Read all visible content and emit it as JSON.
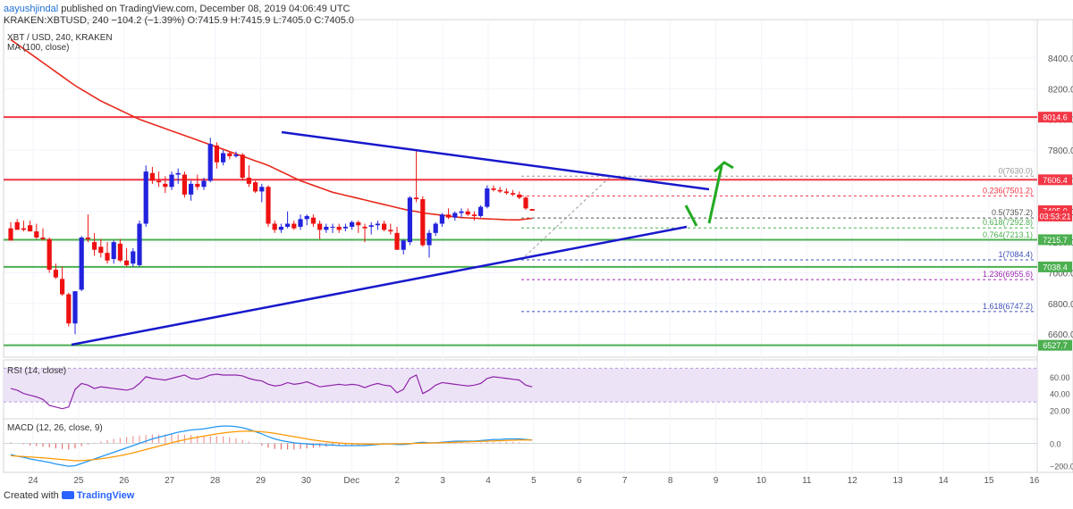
{
  "header": {
    "author": "aayushjindal",
    "published_text": "published on TradingView.com, December 08, 2019 04:06:49 UTC",
    "symbol_line": "KRAKEN:XBTUSD, 240",
    "change": "−104.2 (−1.39%)",
    "ohlc": "O:7415.9 H:7415.9 L:7405.0 C:7405.0"
  },
  "legend": {
    "title": "XBT / USD, 240, KRAKEN",
    "ma": "MA (100, close)",
    "rsi": "RSI (14, close)",
    "macd": "MACD (12, 26, close, 9)"
  },
  "footer": {
    "created_with": "Created with",
    "brand": "TradingView"
  },
  "colors": {
    "up": "#2222dd",
    "down": "#ee1111",
    "ma": "#e8291c",
    "trend": "#1818cc",
    "support": "#4caf50",
    "resistance": "#f23645",
    "arrow": "#22aa22",
    "rsi_line": "#8e24aa",
    "rsi_band": "#ede3f7",
    "macd_line": "#2196f3",
    "signal_line": "#ff9800",
    "fib_grey": "#999999",
    "fib_green": "#4caf50",
    "fib_purple": "#9c27b0",
    "fib_blue": "#3f51b5",
    "fib_red": "#f23645"
  },
  "chart_data": {
    "type": "candlestick",
    "y_ticks": [
      6600,
      6800,
      7000,
      7200,
      7400,
      7600,
      7800,
      8000,
      8200,
      8400
    ],
    "ylim": [
      6450,
      8650
    ],
    "x_labels": [
      "24",
      "25",
      "26",
      "27",
      "28",
      "29",
      "30",
      "Dec",
      "2",
      "3",
      "4",
      "5",
      "6",
      "7",
      "8",
      "9",
      "10",
      "11",
      "12",
      "13",
      "14",
      "15",
      "16"
    ],
    "price_tags": [
      {
        "label": "8014.6",
        "value": 8014.6,
        "color": "#f23645"
      },
      {
        "label": "7606.4",
        "value": 7606.4,
        "color": "#f23645"
      },
      {
        "label": "7405.0",
        "value": 7405.0,
        "color": "#f23645"
      },
      {
        "label": "03:53:21",
        "value": 7370,
        "color": "#f23645"
      },
      {
        "label": "7215.7",
        "value": 7215.7,
        "color": "#4caf50"
      },
      {
        "label": "7038.4",
        "value": 7038.4,
        "color": "#4caf50"
      },
      {
        "label": "6527.7",
        "value": 6527.7,
        "color": "#4caf50"
      }
    ],
    "fib_levels": [
      {
        "label": "0(7630.0)",
        "value": 7630.0,
        "color": "#999999"
      },
      {
        "label": "0.236(7501.2)",
        "value": 7501.2,
        "color": "#f23645"
      },
      {
        "label": "0.5(7357.2)",
        "value": 7357.2,
        "color": "#555555"
      },
      {
        "label": "0.618(7292.8)",
        "value": 7292.8,
        "color": "#4caf50"
      },
      {
        "label": "0.764(7213.1)",
        "value": 7213.1,
        "color": "#4caf50"
      },
      {
        "label": "1(7084.4)",
        "value": 7084.4,
        "color": "#3f51b5"
      },
      {
        "label": "1.236(6955.6)",
        "value": 6955.6,
        "color": "#9c27b0"
      },
      {
        "label": "1.618(6747.2)",
        "value": 6747.2,
        "color": "#3f51b5"
      }
    ],
    "horizontal_lines": [
      {
        "name": "resistance-8014",
        "value": 8014.6,
        "color": "#f23645"
      },
      {
        "name": "resistance-7606",
        "value": 7606.4,
        "color": "#f23645"
      },
      {
        "name": "support-7215",
        "value": 7215.7,
        "color": "#4caf50"
      },
      {
        "name": "support-7038",
        "value": 7038.4,
        "color": "#4caf50"
      },
      {
        "name": "support-6527",
        "value": 6527.7,
        "color": "#4caf50"
      }
    ],
    "candles": [
      [
        7290,
        7330,
        7220,
        7210
      ],
      [
        7330,
        7350,
        7280,
        7280
      ],
      [
        7290,
        7340,
        7270,
        7280
      ],
      [
        7310,
        7340,
        7270,
        7270
      ],
      [
        7270,
        7320,
        7220,
        7230
      ],
      [
        7230,
        7290,
        7210,
        7220
      ],
      [
        7220,
        7230,
        7000,
        7020
      ],
      [
        7020,
        7060,
        6960,
        6970
      ],
      [
        6960,
        7040,
        6850,
        6860
      ],
      [
        6860,
        6870,
        6650,
        6670
      ],
      [
        6670,
        6880,
        6600,
        6880
      ],
      [
        6890,
        7240,
        6880,
        7230
      ],
      [
        7230,
        7380,
        7200,
        7220
      ],
      [
        7200,
        7260,
        7110,
        7150
      ],
      [
        7170,
        7220,
        7100,
        7130
      ],
      [
        7130,
        7200,
        7060,
        7080
      ],
      [
        7090,
        7210,
        7060,
        7200
      ],
      [
        7190,
        7220,
        7070,
        7080
      ],
      [
        7080,
        7160,
        7040,
        7050
      ],
      [
        7060,
        7160,
        7040,
        7140
      ],
      [
        7050,
        7340,
        7040,
        7320
      ],
      [
        7320,
        7700,
        7300,
        7660
      ],
      [
        7650,
        7690,
        7580,
        7600
      ],
      [
        7600,
        7660,
        7560,
        7590
      ],
      [
        7580,
        7630,
        7520,
        7560
      ],
      [
        7560,
        7660,
        7540,
        7640
      ],
      [
        7640,
        7680,
        7580,
        7650
      ],
      [
        7640,
        7660,
        7490,
        7510
      ],
      [
        7510,
        7600,
        7470,
        7580
      ],
      [
        7580,
        7640,
        7540,
        7560
      ],
      [
        7560,
        7620,
        7540,
        7600
      ],
      [
        7600,
        7880,
        7590,
        7840
      ],
      [
        7830,
        7850,
        7680,
        7720
      ],
      [
        7720,
        7800,
        7700,
        7780
      ],
      [
        7780,
        7790,
        7740,
        7760
      ],
      [
        7760,
        7790,
        7750,
        7770
      ],
      [
        7770,
        7780,
        7600,
        7620
      ],
      [
        7620,
        7700,
        7560,
        7580
      ],
      [
        7590,
        7600,
        7520,
        7530
      ],
      [
        7530,
        7580,
        7460,
        7560
      ],
      [
        7560,
        7570,
        7300,
        7320
      ],
      [
        7320,
        7340,
        7260,
        7280
      ],
      [
        7280,
        7320,
        7260,
        7300
      ],
      [
        7300,
        7400,
        7290,
        7320
      ],
      [
        7320,
        7340,
        7280,
        7290
      ],
      [
        7300,
        7380,
        7280,
        7350
      ],
      [
        7350,
        7380,
        7310,
        7370
      ],
      [
        7360,
        7380,
        7300,
        7320
      ],
      [
        7320,
        7340,
        7220,
        7280
      ],
      [
        7280,
        7320,
        7260,
        7300
      ],
      [
        7300,
        7320,
        7260,
        7300
      ],
      [
        7300,
        7320,
        7260,
        7280
      ],
      [
        7290,
        7320,
        7270,
        7300
      ],
      [
        7300,
        7340,
        7280,
        7330
      ],
      [
        7330,
        7340,
        7260,
        7310
      ],
      [
        7300,
        7320,
        7200,
        7290
      ],
      [
        7300,
        7330,
        7250,
        7310
      ],
      [
        7310,
        7340,
        7280,
        7320
      ],
      [
        7320,
        7340,
        7270,
        7280
      ],
      [
        7280,
        7320,
        7250,
        7270
      ],
      [
        7260,
        7300,
        7150,
        7150
      ],
      [
        7150,
        7220,
        7120,
        7210
      ],
      [
        7200,
        7500,
        7180,
        7490
      ],
      [
        7490,
        7800,
        7460,
        7480
      ],
      [
        7480,
        7500,
        7170,
        7180
      ],
      [
        7180,
        7280,
        7100,
        7260
      ],
      [
        7260,
        7330,
        7240,
        7320
      ],
      [
        7320,
        7390,
        7300,
        7380
      ],
      [
        7380,
        7420,
        7350,
        7360
      ],
      [
        7360,
        7400,
        7340,
        7390
      ],
      [
        7390,
        7420,
        7360,
        7400
      ],
      [
        7400,
        7420,
        7370,
        7380
      ],
      [
        7380,
        7400,
        7340,
        7370
      ],
      [
        7370,
        7440,
        7360,
        7430
      ],
      [
        7430,
        7570,
        7420,
        7550
      ],
      [
        7550,
        7570,
        7530,
        7540
      ],
      [
        7540,
        7560,
        7520,
        7530
      ],
      [
        7530,
        7550,
        7510,
        7520
      ],
      [
        7520,
        7540,
        7500,
        7510
      ],
      [
        7510,
        7530,
        7480,
        7490
      ],
      [
        7490,
        7500,
        7410,
        7420
      ],
      [
        7415.9,
        7415.9,
        7405.0,
        7405.0
      ]
    ],
    "ma100": [
      8520,
      8490,
      8460,
      8430,
      8400,
      8370,
      8340,
      8310,
      8280,
      8250,
      8220,
      8195,
      8170,
      8145,
      8120,
      8100,
      8080,
      8060,
      8040,
      8020,
      8000,
      7985,
      7970,
      7955,
      7940,
      7925,
      7910,
      7895,
      7880,
      7865,
      7850,
      7835,
      7820,
      7805,
      7790,
      7775,
      7760,
      7745,
      7730,
      7715,
      7700,
      7680,
      7660,
      7640,
      7620,
      7600,
      7585,
      7570,
      7555,
      7540,
      7525,
      7515,
      7505,
      7495,
      7485,
      7475,
      7465,
      7455,
      7445,
      7435,
      7425,
      7415,
      7405,
      7400,
      7390,
      7385,
      7380,
      7375,
      7370,
      7365,
      7360,
      7358,
      7356,
      7354,
      7352,
      7350,
      7348,
      7346,
      7345,
      7345,
      7350,
      7355
    ],
    "rsi": [
      46,
      44,
      40,
      38,
      36,
      33,
      26,
      24,
      22,
      24,
      45,
      52,
      50,
      46,
      48,
      47,
      46,
      45,
      44,
      46,
      52,
      60,
      58,
      57,
      56,
      58,
      60,
      62,
      58,
      57,
      59,
      62,
      63,
      62,
      62,
      62,
      61,
      58,
      56,
      55,
      51,
      49,
      50,
      53,
      51,
      52,
      54,
      51,
      48,
      49,
      50,
      51,
      50,
      51,
      50,
      47,
      50,
      52,
      50,
      49,
      41,
      45,
      58,
      62,
      40,
      44,
      50,
      53,
      52,
      51,
      50,
      49,
      50,
      52,
      58,
      60,
      59,
      58,
      57,
      56,
      50,
      48
    ],
    "macd_line": [
      -100,
      -115,
      -125,
      -140,
      -150,
      -160,
      -170,
      -185,
      -195,
      -205,
      -200,
      -180,
      -160,
      -140,
      -120,
      -100,
      -80,
      -60,
      -40,
      -20,
      0,
      20,
      40,
      55,
      70,
      85,
      100,
      110,
      120,
      125,
      130,
      140,
      150,
      155,
      155,
      150,
      140,
      125,
      105,
      85,
      60,
      40,
      25,
      15,
      5,
      0,
      -5,
      -10,
      -10,
      -15,
      -15,
      -20,
      -20,
      -20,
      -20,
      -20,
      -15,
      -10,
      -5,
      -5,
      -10,
      -10,
      -5,
      5,
      10,
      5,
      5,
      10,
      15,
      20,
      20,
      20,
      20,
      25,
      30,
      35,
      35,
      40,
      40,
      40,
      35,
      30
    ],
    "signal_line": [
      -110,
      -115,
      -118,
      -122,
      -126,
      -130,
      -135,
      -140,
      -145,
      -150,
      -155,
      -155,
      -150,
      -145,
      -138,
      -130,
      -120,
      -110,
      -98,
      -85,
      -70,
      -55,
      -40,
      -25,
      -10,
      5,
      20,
      32,
      45,
      55,
      65,
      75,
      85,
      93,
      100,
      105,
      108,
      110,
      108,
      104,
      98,
      90,
      80,
      70,
      60,
      50,
      40,
      30,
      22,
      15,
      9,
      4,
      0,
      -3,
      -5,
      -6,
      -7,
      -7,
      -6,
      -5,
      -4,
      -3,
      -2,
      0,
      2,
      3,
      4,
      6,
      8,
      10,
      12,
      14,
      16,
      18,
      20,
      22,
      24,
      26,
      28,
      30,
      30,
      30
    ]
  }
}
